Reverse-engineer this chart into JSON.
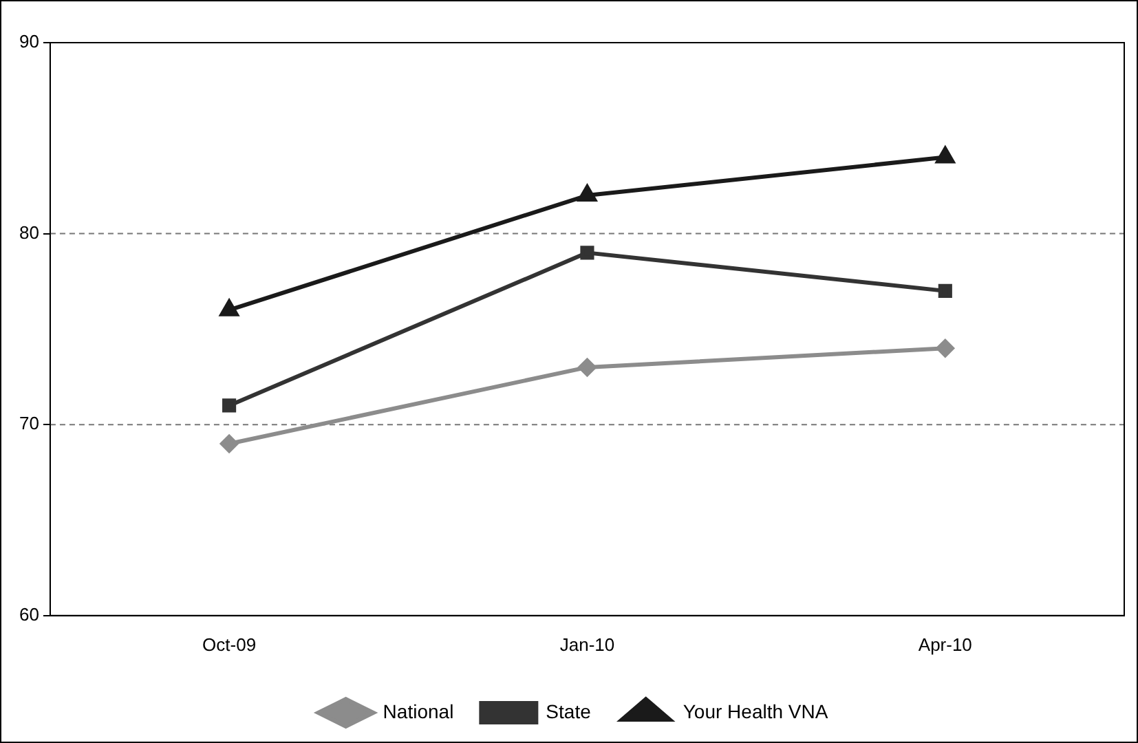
{
  "chart_data": {
    "type": "line",
    "categories": [
      "Oct-09",
      "Jan-10",
      "Apr-10"
    ],
    "series": [
      {
        "name": "National",
        "color": "#8c8c8c",
        "marker": "diamond",
        "values": [
          69,
          73,
          74
        ]
      },
      {
        "name": "State",
        "color": "#333333",
        "marker": "square",
        "values": [
          71,
          79,
          77
        ]
      },
      {
        "name": "Your Health VNA",
        "color": "#1a1a1a",
        "marker": "triangle",
        "values": [
          76,
          82,
          84
        ]
      }
    ],
    "ylim": [
      60,
      90
    ],
    "yticks": [
      60,
      70,
      80,
      90
    ],
    "grid": "y",
    "legend": "bottom",
    "line_style": "solid"
  }
}
